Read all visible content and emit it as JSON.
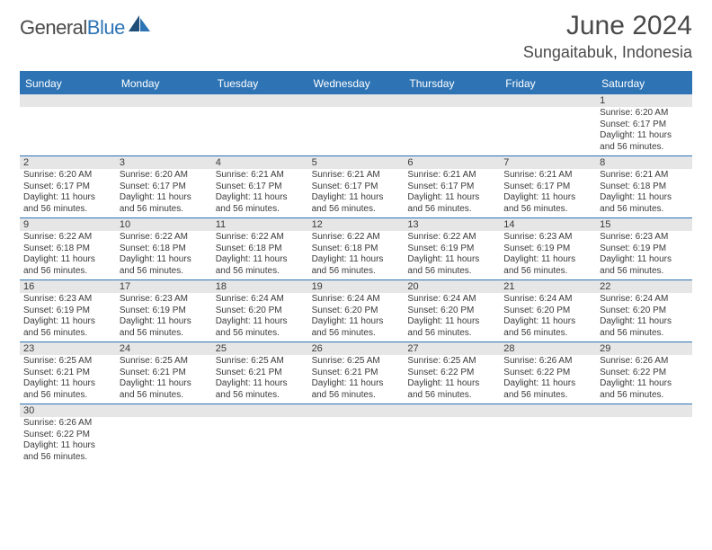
{
  "logo": {
    "text_general": "General",
    "text_blue": "Blue"
  },
  "title": "June 2024",
  "location": "Sungaitabuk, Indonesia",
  "colors": {
    "header_bg": "#2e74b5",
    "header_text": "#ffffff",
    "daynum_bg": "#e6e6e6",
    "border": "#2e74b5",
    "text": "#3a3a3a",
    "body_bg": "#ffffff"
  },
  "day_names": [
    "Sunday",
    "Monday",
    "Tuesday",
    "Wednesday",
    "Thursday",
    "Friday",
    "Saturday"
  ],
  "weeks": [
    [
      null,
      null,
      null,
      null,
      null,
      null,
      {
        "n": "1",
        "sr": "6:20 AM",
        "ss": "6:17 PM",
        "dl": "11 hours and 56 minutes."
      }
    ],
    [
      {
        "n": "2",
        "sr": "6:20 AM",
        "ss": "6:17 PM",
        "dl": "11 hours and 56 minutes."
      },
      {
        "n": "3",
        "sr": "6:20 AM",
        "ss": "6:17 PM",
        "dl": "11 hours and 56 minutes."
      },
      {
        "n": "4",
        "sr": "6:21 AM",
        "ss": "6:17 PM",
        "dl": "11 hours and 56 minutes."
      },
      {
        "n": "5",
        "sr": "6:21 AM",
        "ss": "6:17 PM",
        "dl": "11 hours and 56 minutes."
      },
      {
        "n": "6",
        "sr": "6:21 AM",
        "ss": "6:17 PM",
        "dl": "11 hours and 56 minutes."
      },
      {
        "n": "7",
        "sr": "6:21 AM",
        "ss": "6:17 PM",
        "dl": "11 hours and 56 minutes."
      },
      {
        "n": "8",
        "sr": "6:21 AM",
        "ss": "6:18 PM",
        "dl": "11 hours and 56 minutes."
      }
    ],
    [
      {
        "n": "9",
        "sr": "6:22 AM",
        "ss": "6:18 PM",
        "dl": "11 hours and 56 minutes."
      },
      {
        "n": "10",
        "sr": "6:22 AM",
        "ss": "6:18 PM",
        "dl": "11 hours and 56 minutes."
      },
      {
        "n": "11",
        "sr": "6:22 AM",
        "ss": "6:18 PM",
        "dl": "11 hours and 56 minutes."
      },
      {
        "n": "12",
        "sr": "6:22 AM",
        "ss": "6:18 PM",
        "dl": "11 hours and 56 minutes."
      },
      {
        "n": "13",
        "sr": "6:22 AM",
        "ss": "6:19 PM",
        "dl": "11 hours and 56 minutes."
      },
      {
        "n": "14",
        "sr": "6:23 AM",
        "ss": "6:19 PM",
        "dl": "11 hours and 56 minutes."
      },
      {
        "n": "15",
        "sr": "6:23 AM",
        "ss": "6:19 PM",
        "dl": "11 hours and 56 minutes."
      }
    ],
    [
      {
        "n": "16",
        "sr": "6:23 AM",
        "ss": "6:19 PM",
        "dl": "11 hours and 56 minutes."
      },
      {
        "n": "17",
        "sr": "6:23 AM",
        "ss": "6:19 PM",
        "dl": "11 hours and 56 minutes."
      },
      {
        "n": "18",
        "sr": "6:24 AM",
        "ss": "6:20 PM",
        "dl": "11 hours and 56 minutes."
      },
      {
        "n": "19",
        "sr": "6:24 AM",
        "ss": "6:20 PM",
        "dl": "11 hours and 56 minutes."
      },
      {
        "n": "20",
        "sr": "6:24 AM",
        "ss": "6:20 PM",
        "dl": "11 hours and 56 minutes."
      },
      {
        "n": "21",
        "sr": "6:24 AM",
        "ss": "6:20 PM",
        "dl": "11 hours and 56 minutes."
      },
      {
        "n": "22",
        "sr": "6:24 AM",
        "ss": "6:20 PM",
        "dl": "11 hours and 56 minutes."
      }
    ],
    [
      {
        "n": "23",
        "sr": "6:25 AM",
        "ss": "6:21 PM",
        "dl": "11 hours and 56 minutes."
      },
      {
        "n": "24",
        "sr": "6:25 AM",
        "ss": "6:21 PM",
        "dl": "11 hours and 56 minutes."
      },
      {
        "n": "25",
        "sr": "6:25 AM",
        "ss": "6:21 PM",
        "dl": "11 hours and 56 minutes."
      },
      {
        "n": "26",
        "sr": "6:25 AM",
        "ss": "6:21 PM",
        "dl": "11 hours and 56 minutes."
      },
      {
        "n": "27",
        "sr": "6:25 AM",
        "ss": "6:22 PM",
        "dl": "11 hours and 56 minutes."
      },
      {
        "n": "28",
        "sr": "6:26 AM",
        "ss": "6:22 PM",
        "dl": "11 hours and 56 minutes."
      },
      {
        "n": "29",
        "sr": "6:26 AM",
        "ss": "6:22 PM",
        "dl": "11 hours and 56 minutes."
      }
    ],
    [
      {
        "n": "30",
        "sr": "6:26 AM",
        "ss": "6:22 PM",
        "dl": "11 hours and 56 minutes."
      },
      null,
      null,
      null,
      null,
      null,
      null
    ]
  ],
  "labels": {
    "sunrise": "Sunrise:",
    "sunset": "Sunset:",
    "daylight": "Daylight:"
  }
}
